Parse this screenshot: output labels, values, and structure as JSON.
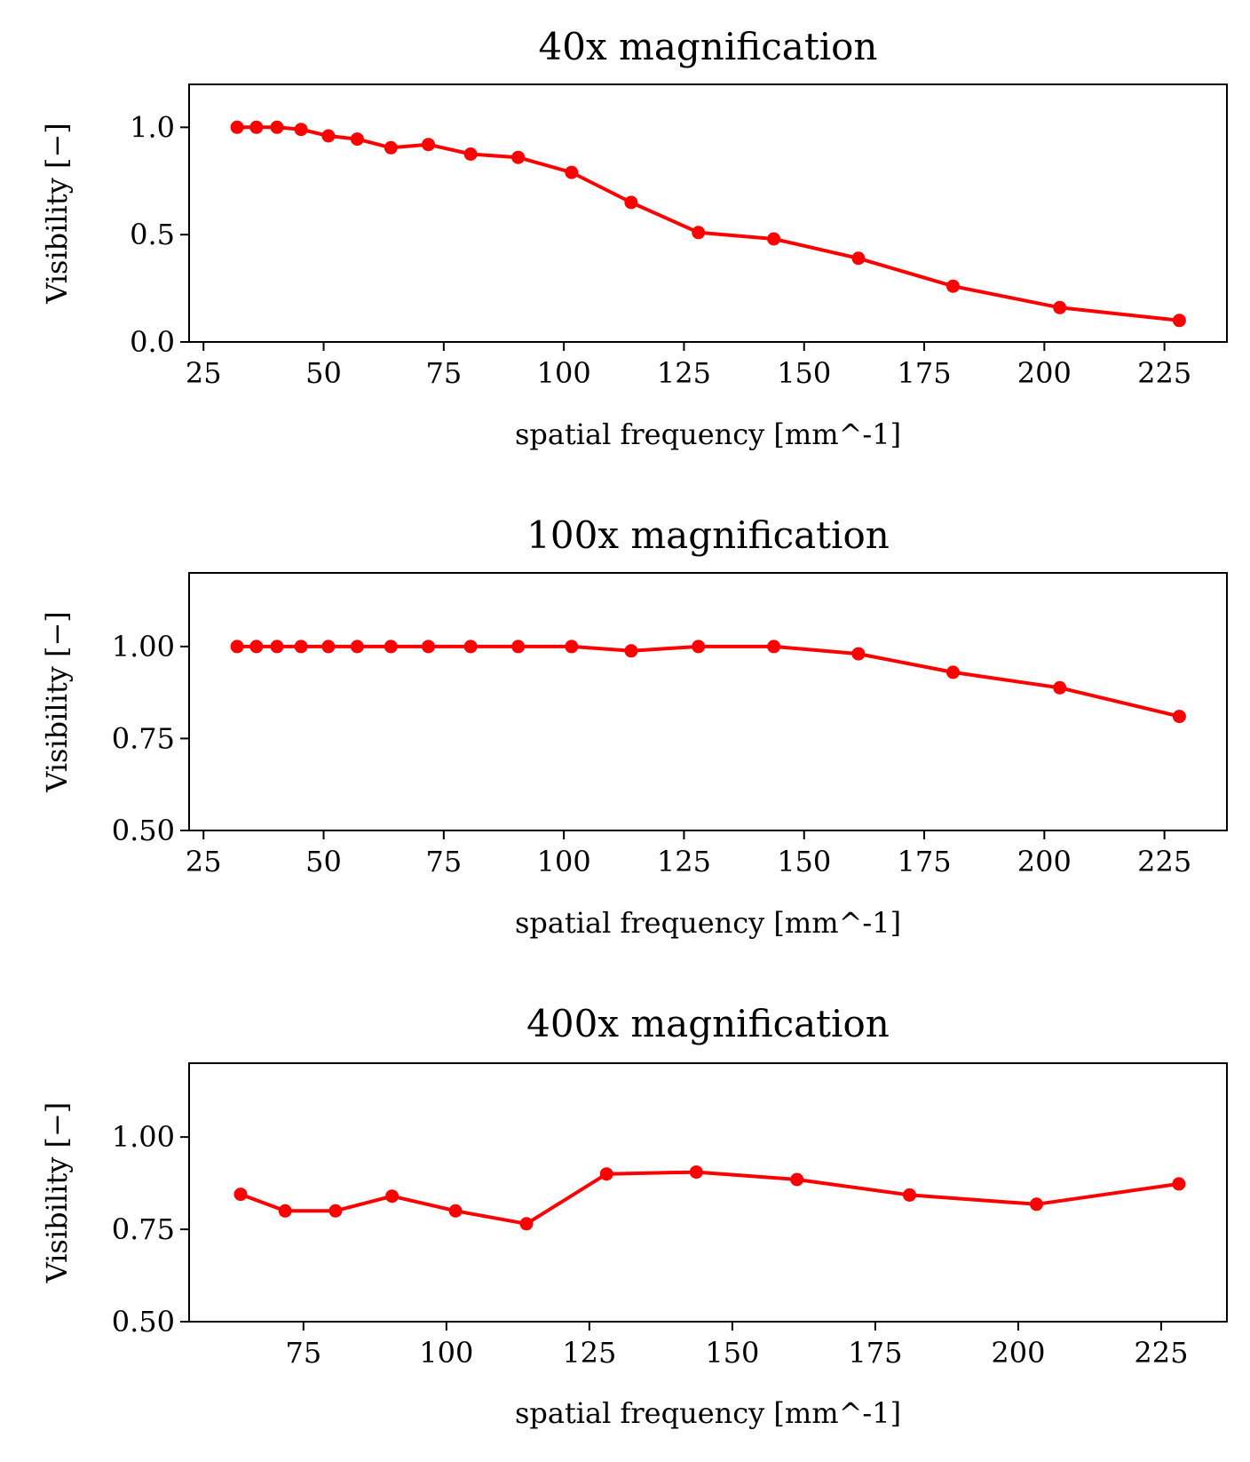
{
  "color": "#ff0000",
  "chart_data": [
    {
      "type": "line",
      "title": "40x magnification",
      "xlabel": "spatial frequency [mm^-1]",
      "ylabel": "Visibility [−]",
      "xlim": [
        22.0,
        238.0
      ],
      "ylim": [
        0.0,
        1.2
      ],
      "xticks": [
        25,
        50,
        75,
        100,
        125,
        150,
        175,
        200,
        225
      ],
      "xticklabels": [
        "25",
        "50",
        "75",
        "100",
        "125",
        "150",
        "175",
        "200",
        "225"
      ],
      "yticks": [
        0.0,
        0.5,
        1.0
      ],
      "yticklabels": [
        "0.0",
        "0.5",
        "1.0"
      ],
      "grid": false,
      "x": [
        32,
        36,
        40.3,
        45.3,
        51,
        57,
        64,
        71.8,
        80.6,
        90.5,
        101.6,
        114,
        128,
        143.7,
        161.3,
        181,
        203.2,
        228.1
      ],
      "values": [
        1.0,
        1.0,
        1.0,
        0.99,
        0.96,
        0.945,
        0.905,
        0.92,
        0.875,
        0.86,
        0.79,
        0.65,
        0.51,
        0.48,
        0.39,
        0.26,
        0.16,
        0.1
      ]
    },
    {
      "type": "line",
      "title": "100x magnification",
      "xlabel": "spatial frequency [mm^-1]",
      "ylabel": "Visibility [−]",
      "xlim": [
        22.0,
        238.0
      ],
      "ylim": [
        0.5,
        1.2
      ],
      "xticks": [
        25,
        50,
        75,
        100,
        125,
        150,
        175,
        200,
        225
      ],
      "xticklabels": [
        "25",
        "50",
        "75",
        "100",
        "125",
        "150",
        "175",
        "200",
        "225"
      ],
      "yticks": [
        0.5,
        0.75,
        1.0
      ],
      "yticklabels": [
        "0.50",
        "0.75",
        "1.00"
      ],
      "grid": false,
      "x": [
        32,
        36,
        40.3,
        45.3,
        51,
        57,
        64,
        71.8,
        80.6,
        90.5,
        101.6,
        114,
        128,
        143.7,
        161.3,
        181,
        203.2,
        228.1
      ],
      "values": [
        1.0,
        1.0,
        1.0,
        1.0,
        1.0,
        1.0,
        1.0,
        1.0,
        1.0,
        1.0,
        1.0,
        0.988,
        1.0,
        1.0,
        0.98,
        0.93,
        0.888,
        0.81
      ]
    },
    {
      "type": "line",
      "title": "400x magnification",
      "xlabel": "spatial frequency [mm^-1]",
      "ylabel": "Visibility [−]",
      "xlim": [
        55.0,
        236.5
      ],
      "ylim": [
        0.5,
        1.2
      ],
      "xticks": [
        75,
        100,
        125,
        150,
        175,
        200,
        225
      ],
      "xticklabels": [
        "75",
        "100",
        "125",
        "150",
        "175",
        "200",
        "225"
      ],
      "yticks": [
        0.5,
        0.75,
        1.0
      ],
      "yticklabels": [
        "0.50",
        "0.75",
        "1.00"
      ],
      "grid": false,
      "x": [
        64,
        71.8,
        80.6,
        90.5,
        101.6,
        114,
        128,
        143.7,
        161.3,
        181,
        203.2,
        228.1
      ],
      "values": [
        0.845,
        0.8,
        0.8,
        0.84,
        0.8,
        0.765,
        0.9,
        0.905,
        0.885,
        0.843,
        0.818,
        0.873
      ]
    }
  ]
}
